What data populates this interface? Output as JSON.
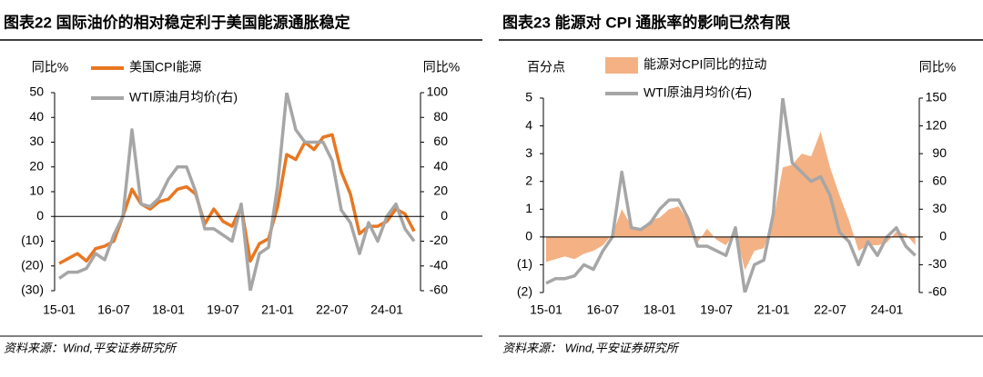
{
  "chart_data": [
    {
      "type": "line",
      "title": "图表22   国际油价的相对稳定利于美国能源通胀稳定",
      "y_label": "同比%",
      "y2_label": "同比%",
      "source": "资料来源：Wind,平安证券研究所",
      "categories": [
        "15-01",
        null,
        null,
        null,
        null,
        null,
        "16-07",
        null,
        null,
        null,
        null,
        null,
        "18-01",
        null,
        null,
        null,
        null,
        null,
        "19-07",
        null,
        null,
        null,
        null,
        null,
        "21-01",
        null,
        null,
        null,
        null,
        null,
        "22-07",
        null,
        null,
        null,
        null,
        null,
        "24-01",
        null,
        null,
        null
      ],
      "ylim": [
        -30,
        50
      ],
      "yticks": [
        {
          "value": -30,
          "label": "(30)"
        },
        {
          "value": -20,
          "label": "(20)"
        },
        {
          "value": -10,
          "label": "(10)"
        },
        0,
        10,
        20,
        30,
        40,
        50
      ],
      "y2lim": [
        -60,
        100
      ],
      "y2ticks": [
        -60,
        -40,
        -20,
        0,
        20,
        40,
        60,
        80,
        100
      ],
      "negative_label_color": "#C00000",
      "series": [
        {
          "name": "美国CPI能源",
          "color": "#E87722",
          "values": [
            -19,
            -17,
            -15,
            -18,
            -13,
            -12,
            -10,
            0,
            11,
            5,
            3,
            6,
            7,
            11,
            12,
            9,
            -3,
            3,
            -2,
            -4,
            4,
            -18,
            -11,
            -9,
            4,
            25,
            23,
            30,
            27,
            32,
            33,
            18,
            9,
            -7,
            -4,
            -4,
            -2,
            3,
            1,
            -6
          ]
        },
        {
          "name": "WTI原油月均价(右)",
          "color": "#A6A6A6",
          "axis": "y2",
          "values": [
            -50,
            -45,
            -45,
            -42,
            -30,
            -35,
            -15,
            0,
            70,
            10,
            8,
            15,
            30,
            40,
            40,
            20,
            -10,
            -10,
            -15,
            -20,
            10,
            -60,
            -30,
            -25,
            25,
            100,
            70,
            60,
            60,
            60,
            45,
            5,
            -5,
            -30,
            -5,
            -20,
            0,
            10,
            -10,
            -20
          ]
        }
      ]
    },
    {
      "type": "area",
      "title": "图表23   能源对 CPI 通胀率的影响已然有限",
      "y_label": "百分点",
      "y2_label": "同比%",
      "source": "资料来源： Wind,平安证券研究所",
      "categories": [
        "15-01",
        null,
        null,
        null,
        null,
        null,
        "16-07",
        null,
        null,
        null,
        null,
        null,
        "18-01",
        null,
        null,
        null,
        null,
        null,
        "19-07",
        null,
        null,
        null,
        null,
        null,
        "21-01",
        null,
        null,
        null,
        null,
        null,
        "22-07",
        null,
        null,
        null,
        null,
        null,
        "24-01",
        null,
        null,
        null
      ],
      "ylim": [
        -2,
        5
      ],
      "yticks": [
        {
          "value": -2,
          "label": "(2)"
        },
        {
          "value": -1,
          "label": "(1)"
        },
        0,
        1,
        2,
        3,
        4,
        5
      ],
      "y2lim": [
        -60,
        150
      ],
      "y2ticks": [
        -60,
        -30,
        0,
        30,
        60,
        90,
        120,
        150
      ],
      "negative_label_color": "#C00000",
      "series": [
        {
          "name": "能源对CPI同比的拉动",
          "color": "#F4B183",
          "type": "area",
          "values": [
            -0.9,
            -0.8,
            -0.7,
            -0.8,
            -0.6,
            -0.5,
            -0.3,
            0.1,
            1.0,
            0.4,
            0.3,
            0.6,
            0.7,
            1.0,
            1.1,
            0.6,
            -0.2,
            0.3,
            -0.1,
            -0.3,
            0.2,
            -1.2,
            -0.5,
            -0.4,
            0.6,
            2.5,
            2.6,
            3.0,
            2.9,
            3.8,
            2.5,
            1.5,
            0.6,
            -0.5,
            -0.3,
            -0.3,
            -0.2,
            0.2,
            0.1,
            -0.3
          ]
        },
        {
          "name": "WTI原油月均价(右)",
          "color": "#A6A6A6",
          "type": "line",
          "axis": "y2",
          "values": [
            -50,
            -45,
            -45,
            -42,
            -30,
            -35,
            -15,
            0,
            70,
            10,
            8,
            15,
            30,
            40,
            40,
            20,
            -10,
            -10,
            -15,
            -20,
            10,
            -60,
            -30,
            -25,
            25,
            150,
            80,
            70,
            60,
            65,
            45,
            5,
            -5,
            -30,
            -5,
            -20,
            0,
            10,
            -10,
            -20
          ]
        }
      ]
    }
  ]
}
